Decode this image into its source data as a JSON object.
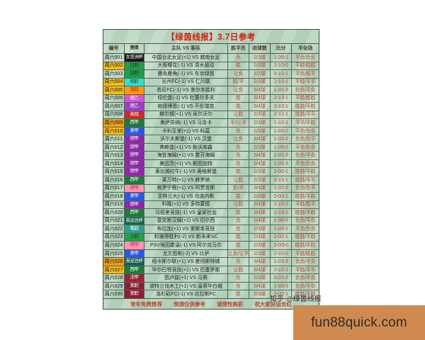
{
  "board": {
    "title": "【绿茵线报】3.7日参考",
    "title_color": "#ce1d0e",
    "bg": "#b9d7c1",
    "headers": [
      "编号",
      "赛事",
      "主队 VS 客队",
      "胜平负",
      "进球数",
      "比分",
      "半全场"
    ],
    "footer": [
      "常年免费推荐",
      "预测仅供参考",
      "请理性购彩",
      "祝大家好运长红"
    ]
  },
  "colors": {
    "prediction_text": "#c0402a",
    "highlight_yellow": "#f5bd1e",
    "highlight_orange": "#ee9d15",
    "grid_line": "#57655b"
  },
  "rows": [
    {
      "no": "周六001",
      "no_bg": "",
      "league": "女亚洲杯",
      "league_bg": "#161616",
      "league_fg": "#ffffff",
      "match": "中国台北女足(+1) VS 越南女足",
      "result": "负",
      "goals": "2/3球",
      "score": "1-2/0-2",
      "htft": "平负/负负"
    },
    {
      "no": "周六002",
      "no_bg": "#f5bd1e",
      "league": "日职",
      "league_bg": "#1ca048",
      "league_fg": "#0c3a18",
      "match": "大阪樱花(-1) VS 清水鼓动",
      "result": "胜",
      "goals": "2/3球",
      "score": "2-1/2-0",
      "htft": "平胜/胜胜"
    },
    {
      "no": "周六003",
      "no_bg": "",
      "league": "日职",
      "league_bg": "#1ca048",
      "league_fg": "#0c3a18",
      "match": "鹿岛鹿角(-1) VS 东京绿茵",
      "result": "让负",
      "goals": "1/2球",
      "score": "0-1/1-1",
      "htft": "平负/胜平"
    },
    {
      "no": "周六004",
      "no_bg": "#f5bd1e",
      "league": "韩职",
      "league_bg": "#35e0c8",
      "league_fg": "#19493f",
      "match": "光州FC(-1) VS 仁川联",
      "result": "胜/平",
      "goals": "2/3球",
      "score": "2-1/1-1",
      "htft": "平胜/平平"
    },
    {
      "no": "周六005",
      "no_bg": "#f5bd1e",
      "league": "澳超",
      "league_bg": "#ff9614",
      "league_fg": "#a62b06",
      "match": "悉尼FC(-1) VS 墨尔本胜利",
      "result": "让负",
      "goals": "3/4球",
      "score": "1-2/1-3",
      "htft": "负负/平负"
    },
    {
      "no": "周六006",
      "no_bg": "",
      "league": "德乙",
      "league_bg": "#d553d5",
      "league_fg": "#ffffff",
      "match": "纽伦堡(-1) VS 杜塞尔多夫",
      "result": "胜",
      "goals": "3/4球",
      "score": "2-1/3-1",
      "htft": "平胜/胜胜"
    },
    {
      "no": "周六007",
      "no_bg": "",
      "league": "德乙",
      "league_bg": "#9a41c8",
      "league_fg": "#ffffff",
      "match": "帕德博恩(-1) VS 不伦瑞克",
      "result": "胜",
      "goals": "3/4球",
      "score": "3-1/2-1",
      "htft": "胜胜/平胜"
    },
    {
      "no": "周六008",
      "no_bg": "",
      "league": "英冠",
      "league_bg": "#cf2929",
      "league_fg": "#ffffff",
      "match": "赫尔城(+1) VS 米尔沃尔",
      "result": "让胜",
      "goals": "2/3球",
      "score": "2-1/1-1",
      "htft": "胜胜/平平"
    },
    {
      "no": "周六009",
      "no_bg": "#ee9d15",
      "league": "西甲",
      "league_bg": "#1d7a3c",
      "league_fg": "#ffffff",
      "match": "奥萨苏纳(-1) VS 马洛卡",
      "result": "平/让平",
      "goals": "2/3球",
      "score": "1-1/2-1",
      "htft": "平平/平胜"
    },
    {
      "no": "周六010",
      "no_bg": "#f5bd1e",
      "league": "意甲",
      "league_bg": "#2a57e8",
      "league_fg": "#ffffff",
      "match": "卡利亚里(+1) VS 科莫",
      "result": "负",
      "goals": "2/3球",
      "score": "1-2/0-2",
      "htft": "平负/负负"
    },
    {
      "no": "周六011",
      "no_bg": "",
      "league": "德甲",
      "league_bg": "#8f27a8",
      "league_fg": "#ffffff",
      "match": "沃尔夫斯堡(-1) VS 汉堡",
      "result": "让负",
      "goals": "3/4球",
      "score": "1-2/2-2",
      "htft": "负负/负平"
    },
    {
      "no": "周六012",
      "no_bg": "",
      "league": "德甲",
      "league_bg": "#8f27a8",
      "league_fg": "#ffffff",
      "match": "弗赖堡(+1) VS 勒沃库森",
      "result": "负",
      "goals": "2/3球",
      "score": "1-2/0-2",
      "htft": "平负/负负"
    },
    {
      "no": "周六013",
      "no_bg": "",
      "league": "德甲",
      "league_bg": "#8f27a8",
      "league_fg": "#ffffff",
      "match": "海登海姆(+1) VS 霍芬海姆",
      "result": "负",
      "goals": "3/4球",
      "score": "1-2/1-3",
      "htft": "负负/平负"
    },
    {
      "no": "周六014",
      "no_bg": "",
      "league": "德甲",
      "league_bg": "#8f27a8",
      "league_fg": "#ffffff",
      "match": "美因茨(+1) VS 斯图加特",
      "result": "负",
      "goals": "3/4球",
      "score": "1-2/1-3",
      "htft": "平负/负负"
    },
    {
      "no": "周六015",
      "no_bg": "",
      "league": "德甲",
      "league_bg": "#8f27a8",
      "league_fg": "#ffffff",
      "match": "莱比锡红牛(-1) VS 奥格斯堡",
      "result": "胜",
      "goals": "2/3球",
      "score": "2-0/2-1",
      "htft": "胜胜/平胜"
    },
    {
      "no": "周六016",
      "no_bg": "",
      "league": "西甲",
      "league_bg": "#1d7a3c",
      "league_fg": "#ffffff",
      "match": "莱万特(+1) VS 赫罗纳",
      "result": "让胜",
      "goals": "2/3球",
      "score": "2-1/1-1",
      "htft": "胜胜/平平"
    },
    {
      "no": "周六017",
      "no_bg": "",
      "league": "荷甲",
      "league_bg": "#ff93b4",
      "league_fg": "#c8254a",
      "match": "格罗宁根(+1) VS 阿贾克斯",
      "result": "负/平",
      "goals": "3/4球",
      "score": "1-2/2-2",
      "htft": "负负/负平"
    },
    {
      "no": "周六018",
      "no_bg": "",
      "league": "意甲",
      "league_bg": "#2a57e8",
      "league_fg": "#ffffff",
      "match": "亚特兰大(-1) VS 乌迪内斯",
      "result": "胜",
      "goals": "2/3球",
      "score": "2-0/2-1",
      "htft": "胜胜/平胜"
    },
    {
      "no": "周六019",
      "no_bg": "",
      "league": "德甲",
      "league_bg": "#8f27a8",
      "league_fg": "#ffffff",
      "match": "科隆(+1) VS 多特蒙德",
      "result": "让胜",
      "goals": "3/4球",
      "score": "2-1/2-2",
      "htft": "平胜/胜平"
    },
    {
      "no": "周六020",
      "no_bg": "",
      "league": "西甲",
      "league_bg": "#1d7a3c",
      "league_fg": "#ffffff",
      "match": "马德里竞技(-1) VS 皇家社会",
      "result": "胜",
      "goals": "3/4球",
      "score": "2-1/3-1",
      "htft": "胜胜/平胜"
    },
    {
      "no": "周六021",
      "no_bg": "",
      "league": "英足总杯",
      "league_bg": "#15604b",
      "league_fg": "#ffffff",
      "match": "雷克斯汉姆(+1) VS 切尔西",
      "result": "负",
      "goals": "3/4球",
      "score": "1-3/0-3",
      "htft": "负负/平负"
    },
    {
      "no": "周六022",
      "no_bg": "",
      "league": "葡超",
      "league_bg": "#2f9e8f",
      "league_fg": "#ffffff",
      "match": "布拉加(+1) VS 里斯本竞技",
      "result": "负",
      "goals": "2/3球",
      "score": "1-2/0-2",
      "htft": "平负/负负"
    },
    {
      "no": "周六023",
      "no_bg": "",
      "league": "沙职",
      "league_bg": "#27a04a",
      "league_fg": "#0e4a23",
      "match": "利雅得胜利(-2) VS 新未来SC",
      "result": "胜",
      "goals": "2/3球",
      "score": "2-0/2-1",
      "htft": "胜胜/平胜"
    },
    {
      "no": "周六024",
      "no_bg": "",
      "league": "荷甲",
      "league_bg": "#ff93b4",
      "league_fg": "#c8254a",
      "match": "PSV埃因霍温(-1) VS 阿尔克马尔",
      "result": "胜",
      "goals": "2/3球",
      "score": "2-0/3-0",
      "htft": "胜胜/平胜"
    },
    {
      "no": "周六025",
      "no_bg": "",
      "league": "意甲",
      "league_bg": "#2a57e8",
      "league_fg": "#ffffff",
      "match": "尤文图斯(-2) VS 比萨",
      "result": "让负/让平",
      "goals": "2/3球",
      "score": "2-1/2-0",
      "htft": "平胜/胜胜"
    },
    {
      "no": "周六026",
      "no_bg": "#ee9d15",
      "league": "英足总杯",
      "league_bg": "#15604b",
      "league_fg": "#ffffff",
      "match": "纽卡斯尔联(+1) VS 曼彻斯特城",
      "result": "负",
      "goals": "3/4球",
      "score": "1-2/1-3",
      "htft": "负负/平负"
    },
    {
      "no": "周六027",
      "no_bg": "#f5bd1e",
      "league": "西甲",
      "league_bg": "#1d7a3c",
      "league_fg": "#ffffff",
      "match": "毕尔巴鄂竞技(+1) VS 巴塞罗那",
      "result": "让胜",
      "goals": "3/4球",
      "score": "2-1/2-2",
      "htft": "平胜/平平"
    },
    {
      "no": "周六028",
      "no_bg": "",
      "league": "法甲",
      "league_bg": "#952639",
      "league_fg": "#ffffff",
      "match": "图卢兹(+1) VS 马赛",
      "result": "负",
      "goals": "2/3球",
      "score": "0-2/1-2",
      "htft": "负负/平负"
    },
    {
      "no": "周六029",
      "no_bg": "",
      "league": "美职",
      "league_bg": "#8c1f33",
      "league_fg": "#ffffff",
      "match": "波特兰伐木工(+1) VS 温哥华白帽",
      "result": "负",
      "goals": "3/4球",
      "score": "1-3/0-3",
      "htft": "负负/平负"
    },
    {
      "no": "周六030",
      "no_bg": "",
      "league": "美职",
      "league_bg": "#8c1f33",
      "league_fg": "#ffffff",
      "match": "洛杉矶FC(-1) VS 达拉斯FC",
      "result": "胜",
      "goals": "2/3球",
      "score": "2-0/2-1",
      "htft": "胜胜/平胜"
    }
  ],
  "watermark": {
    "text": "知乎 @绿茵线报"
  },
  "promo": {
    "text": "fun88quick.com",
    "bg": "#d08a4f"
  }
}
